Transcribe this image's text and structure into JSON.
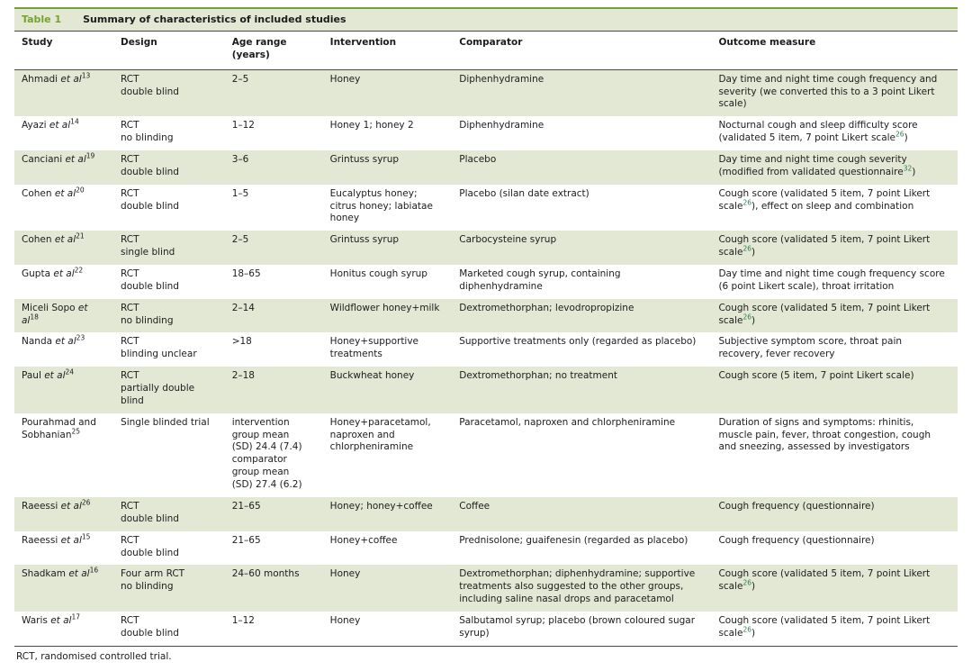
{
  "table": {
    "label": "Table 1",
    "title": "Summary of characteristics of included studies",
    "columns": [
      "Study",
      "Design",
      "Age range (years)",
      "Intervention",
      "Comparator",
      "Outcome measure"
    ],
    "footnote": "RCT, randomised controlled trial.",
    "accent_color": "#76a32e",
    "row_highlight_color": "#e3e8d5",
    "rows": [
      {
        "study": {
          "pre": "Ahmadi ",
          "italic": "et al",
          "sup": "13"
        },
        "design": "RCT\ndouble blind",
        "age": "2–5",
        "intervention": "Honey",
        "comparator": "Diphenhydramine",
        "outcome": [
          {
            "t": "Day time and night time cough frequency and severity (we converted this to a 3 point Likert scale)"
          }
        ]
      },
      {
        "study": {
          "pre": "Ayazi ",
          "italic": "et al",
          "sup": "14"
        },
        "design": "RCT\nno blinding",
        "age": "1–12",
        "intervention": "Honey 1; honey 2",
        "comparator": "Diphenhydramine",
        "outcome": [
          {
            "t": "Nocturnal cough and sleep difficulty score (validated 5 item, 7 point Likert scale"
          },
          {
            "s": "26"
          },
          {
            "t": ")"
          }
        ]
      },
      {
        "study": {
          "pre": "Canciani ",
          "italic": "et al",
          "sup": "19"
        },
        "design": "RCT\ndouble blind",
        "age": "3–6",
        "intervention": "Grintuss syrup",
        "comparator": "Placebo",
        "outcome": [
          {
            "t": "Day time and night time cough severity (modified from validated questionnaire"
          },
          {
            "s": "32"
          },
          {
            "t": ")"
          }
        ]
      },
      {
        "study": {
          "pre": "Cohen ",
          "italic": "et al",
          "sup": "20"
        },
        "design": "RCT\ndouble blind",
        "age": "1–5",
        "intervention": "Eucalyptus honey; citrus honey; labiatae honey",
        "comparator": "Placebo (silan date extract)",
        "outcome": [
          {
            "t": "Cough score (validated 5 item, 7 point Likert scale"
          },
          {
            "s": "26"
          },
          {
            "t": "), effect on sleep and combination"
          }
        ]
      },
      {
        "study": {
          "pre": "Cohen ",
          "italic": "et al",
          "sup": "21"
        },
        "design": "RCT\nsingle blind",
        "age": "2–5",
        "intervention": "Grintuss syrup",
        "comparator": "Carbocysteine syrup",
        "outcome": [
          {
            "t": "Cough score (validated 5 item, 7 point Likert scale"
          },
          {
            "s": "26"
          },
          {
            "t": ")"
          }
        ]
      },
      {
        "study": {
          "pre": "Gupta ",
          "italic": "et al",
          "sup": "22"
        },
        "design": "RCT\ndouble blind",
        "age": "18–65",
        "intervention": "Honitus cough syrup",
        "comparator": "Marketed cough syrup, containing diphenhydramine",
        "outcome": [
          {
            "t": "Day time and night time cough frequency score (6 point Likert scale), throat irritation"
          }
        ]
      },
      {
        "study": {
          "pre": "Miceli Sopo ",
          "italic": "et al",
          "sup": "18"
        },
        "design": "RCT\nno blinding",
        "age": "2–14",
        "intervention": "Wildflower honey+milk",
        "comparator": "Dextromethorphan; levodropropizine",
        "outcome": [
          {
            "t": "Cough score (validated 5 item, 7 point Likert scale"
          },
          {
            "s": "26"
          },
          {
            "t": ")"
          }
        ]
      },
      {
        "study": {
          "pre": "Nanda ",
          "italic": "et al",
          "sup": "23"
        },
        "design": "RCT\nblinding unclear",
        "age": ">18",
        "intervention": "Honey+supportive treatments",
        "comparator": "Supportive treatments only (regarded as placebo)",
        "outcome": [
          {
            "t": "Subjective symptom score, throat pain recovery, fever recovery"
          }
        ]
      },
      {
        "study": {
          "pre": "Paul ",
          "italic": "et al",
          "sup": "24"
        },
        "design": "RCT\npartially double blind",
        "age": "2–18",
        "intervention": "Buckwheat honey",
        "comparator": "Dextromethorphan; no treatment",
        "outcome": [
          {
            "t": "Cough score (5 item, 7 point Likert scale)"
          }
        ]
      },
      {
        "study": {
          "pre": "Pourahmad and Sobhanian",
          "sup": "25"
        },
        "design": "Single blinded trial",
        "age": "intervention group mean (SD) 24.4 (7.4) comparator group mean (SD) 27.4 (6.2)",
        "intervention": "Honey+paracetamol, naproxen and chlorpheniramine",
        "comparator": "Paracetamol, naproxen and chlorpheniramine",
        "outcome": [
          {
            "t": "Duration of signs and symptoms: rhinitis, muscle pain, fever, throat congestion, cough and sneezing, assessed by investigators"
          }
        ]
      },
      {
        "study": {
          "pre": "Raeessi ",
          "italic": "et al",
          "sup": "26"
        },
        "design": "RCT\ndouble blind",
        "age": "21–65",
        "intervention": "Honey; honey+coffee",
        "comparator": "Coffee",
        "outcome": [
          {
            "t": "Cough frequency (questionnaire)"
          }
        ]
      },
      {
        "study": {
          "pre": "Raeessi ",
          "italic": "et al",
          "sup": "15"
        },
        "design": "RCT\ndouble blind",
        "age": "21–65",
        "intervention": "Honey+coffee",
        "comparator": "Prednisolone; guaifenesin (regarded as placebo)",
        "outcome": [
          {
            "t": "Cough frequency (questionnaire)"
          }
        ]
      },
      {
        "study": {
          "pre": "Shadkam ",
          "italic": "et al",
          "sup": "16"
        },
        "design": "Four arm RCT\nno blinding",
        "age": "24–60 months",
        "intervention": "Honey",
        "comparator": "Dextromethorphan; diphenhydramine; supportive treatments also suggested to the other groups, including saline nasal drops and paracetamol",
        "outcome": [
          {
            "t": "Cough score (validated 5 item, 7 point Likert scale"
          },
          {
            "s": "26"
          },
          {
            "t": ")"
          }
        ]
      },
      {
        "study": {
          "pre": "Waris ",
          "italic": "et al",
          "sup": "17"
        },
        "design": "RCT\ndouble blind",
        "age": "1–12",
        "intervention": "Honey",
        "comparator": "Salbutamol syrup; placebo (brown coloured sugar syrup)",
        "outcome": [
          {
            "t": "Cough score (validated 5 item, 7 point Likert scale"
          },
          {
            "s": "26"
          },
          {
            "t": ")"
          }
        ]
      }
    ]
  }
}
